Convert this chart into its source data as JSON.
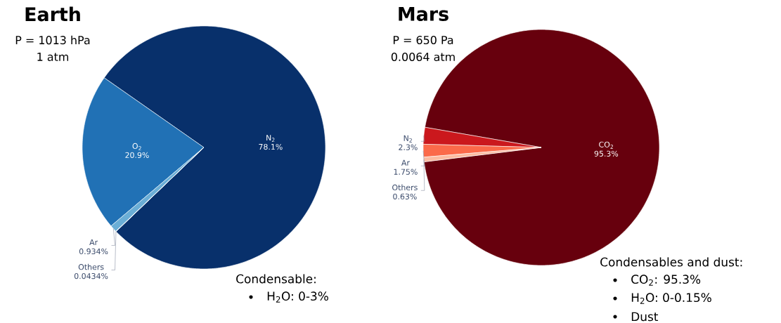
{
  "chart_data": [
    {
      "type": "pie",
      "title": "Earth",
      "subtitle": "P = 1013 hPa",
      "annotations": [
        "1 atm",
        "Condensable:",
        "H$_{2}$O: 0-3%"
      ],
      "categories": [
        "N$_{2}$",
        "O$_{2}$",
        "Ar",
        "Others"
      ],
      "values": [
        78.1,
        20.9,
        0.934,
        0.0434
      ],
      "value_labels": [
        "78.1%",
        "20.9%",
        "0.934%",
        "0.0434%"
      ],
      "colors": [
        "#08306b",
        "#2171b5",
        "#6baed6",
        "#c6dbef"
      ]
    },
    {
      "type": "pie",
      "title": "Mars",
      "subtitle": "P = 650 Pa",
      "annotations": [
        "0.0064 atm",
        "Condensables and dust:",
        "CO$_{2}$: 95.3%",
        "H$_{2}$O: 0-0.15%",
        "Dust"
      ],
      "categories": [
        "CO$_{2}$",
        "N$_{2}$",
        "Ar",
        "Others"
      ],
      "values": [
        95.3,
        2.3,
        1.75,
        0.63
      ],
      "value_labels": [
        "95.3%",
        "2.3%",
        "1.75%",
        "0.63%"
      ],
      "colors": [
        "#67000d",
        "#cb181d",
        "#fb6a4a",
        "#fcbba1"
      ]
    }
  ]
}
